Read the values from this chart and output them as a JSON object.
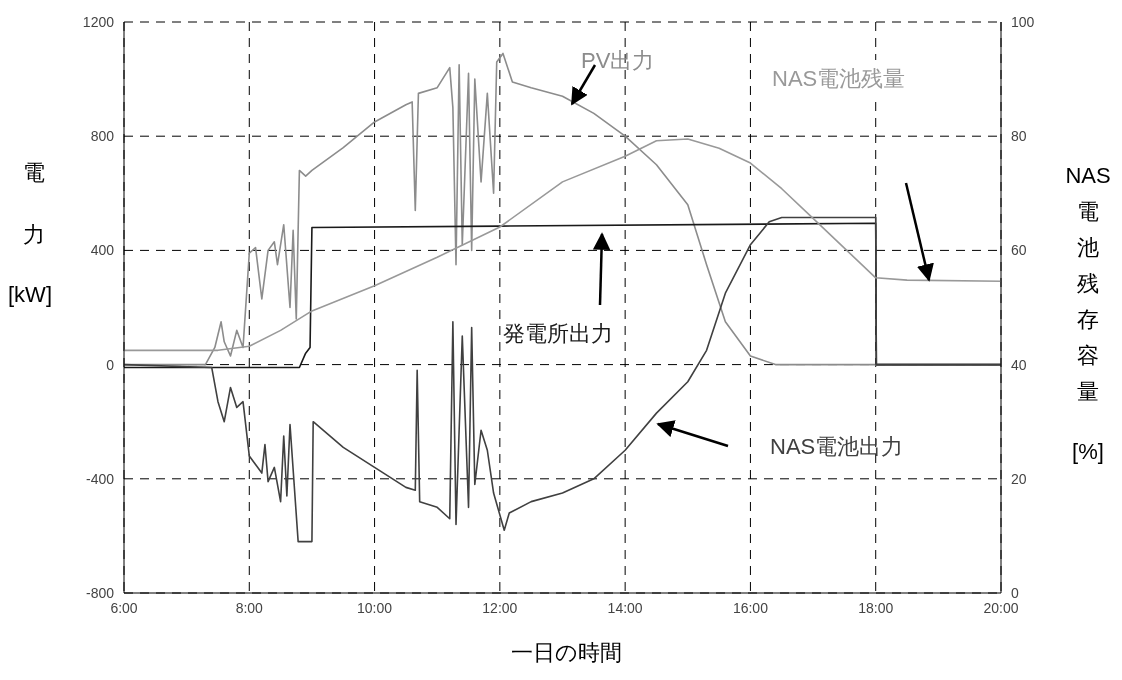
{
  "chart_data": {
    "type": "line",
    "xlabel": "一日の時間",
    "ylabel": "電力[kW]",
    "y2label": "NAS電池残存容量[%]",
    "xlim": [
      6,
      20
    ],
    "xticks": [
      {
        "value": 6,
        "label": "6:00"
      },
      {
        "value": 8,
        "label": "8:00"
      },
      {
        "value": 10,
        "label": "10:00"
      },
      {
        "value": 12,
        "label": "12:00"
      },
      {
        "value": 14,
        "label": "14:00"
      },
      {
        "value": 16,
        "label": "16:00"
      },
      {
        "value": 18,
        "label": "18:00"
      },
      {
        "value": 20,
        "label": "20:00"
      }
    ],
    "ylim": [
      -800,
      1200
    ],
    "yticks": [
      -800,
      -400,
      0,
      400,
      800,
      1200
    ],
    "y2lim": [
      0,
      100
    ],
    "y2ticks": [
      0,
      20,
      40,
      60,
      80,
      100
    ],
    "grid": true,
    "legend": false,
    "marker": "none",
    "line_style": "solid",
    "series": [
      {
        "name": "PV出力",
        "color": "#8c8c8c",
        "x": [
          6,
          7.3,
          7.45,
          7.55,
          7.6,
          7.7,
          7.8,
          7.9,
          8.0,
          8.1,
          8.2,
          8.3,
          8.4,
          8.45,
          8.55,
          8.65,
          8.7,
          8.75,
          8.8,
          8.9,
          9.0,
          9.5,
          10.0,
          10.5,
          10.6,
          10.65,
          10.7,
          11.0,
          11.2,
          11.25,
          11.3,
          11.35,
          11.4,
          11.5,
          11.55,
          11.6,
          11.7,
          11.8,
          11.9,
          11.95,
          12.05,
          12.2,
          12.5,
          13.0,
          13.5,
          14.0,
          14.5,
          15.0,
          15.3,
          15.6,
          16.0,
          16.4,
          20
        ],
        "values": [
          0,
          0,
          60,
          150,
          80,
          30,
          120,
          60,
          390,
          410,
          230,
          400,
          430,
          350,
          490,
          200,
          470,
          160,
          680,
          660,
          680,
          760,
          850,
          910,
          920,
          540,
          950,
          970,
          1040,
          900,
          350,
          1050,
          420,
          1020,
          400,
          1000,
          640,
          950,
          600,
          1060,
          1090,
          990,
          970,
          940,
          880,
          800,
          700,
          560,
          350,
          150,
          30,
          0,
          0
        ]
      },
      {
        "name": "発電所出力",
        "color": "#1a1a1a",
        "x": [
          6,
          8.8,
          8.9,
          8.97,
          9.0,
          12,
          18,
          18.01,
          20
        ],
        "values": [
          -10,
          -10,
          40,
          60,
          480,
          485,
          495,
          0,
          0
        ]
      },
      {
        "name": "NAS電池出力",
        "color": "#404040",
        "x": [
          6,
          7.4,
          7.5,
          7.6,
          7.7,
          7.8,
          7.9,
          8.0,
          8.2,
          8.25,
          8.3,
          8.4,
          8.5,
          8.55,
          8.6,
          8.65,
          8.78,
          9.0,
          9.02,
          9.5,
          10.0,
          10.5,
          10.65,
          10.68,
          10.72,
          11.0,
          11.2,
          11.25,
          11.3,
          11.4,
          11.5,
          11.55,
          11.6,
          11.7,
          11.8,
          11.9,
          12.07,
          12.15,
          12.5,
          13.0,
          13.5,
          14.0,
          14.5,
          15.0,
          15.3,
          15.6,
          16.0,
          16.3,
          16.5,
          18.0,
          18.01,
          20
        ],
        "values": [
          0,
          -10,
          -130,
          -200,
          -80,
          -150,
          -130,
          -320,
          -380,
          -280,
          -410,
          -360,
          -480,
          -250,
          -460,
          -210,
          -620,
          -620,
          -200,
          -290,
          -360,
          -430,
          -440,
          -20,
          -480,
          -500,
          -540,
          150,
          -560,
          100,
          -500,
          130,
          -420,
          -230,
          -300,
          -450,
          -580,
          -520,
          -480,
          -450,
          -400,
          -300,
          -170,
          -60,
          50,
          250,
          420,
          500,
          515,
          515,
          0,
          0
        ]
      },
      {
        "name": "NAS電池残量",
        "color": "#999999",
        "axis": "y2",
        "x": [
          6,
          7.5,
          8.0,
          8.5,
          9.0,
          10,
          11,
          12,
          13,
          14,
          14.5,
          15,
          15.5,
          16,
          16.5,
          17,
          17.5,
          18,
          18.5,
          20
        ],
        "values": [
          42.5,
          42.5,
          43.2,
          46,
          49.4,
          53.8,
          58.8,
          64.1,
          72,
          76.5,
          79.2,
          79.5,
          77.9,
          75.3,
          70.8,
          65.6,
          60.4,
          55.2,
          54.8,
          54.6
        ]
      }
    ]
  }
}
